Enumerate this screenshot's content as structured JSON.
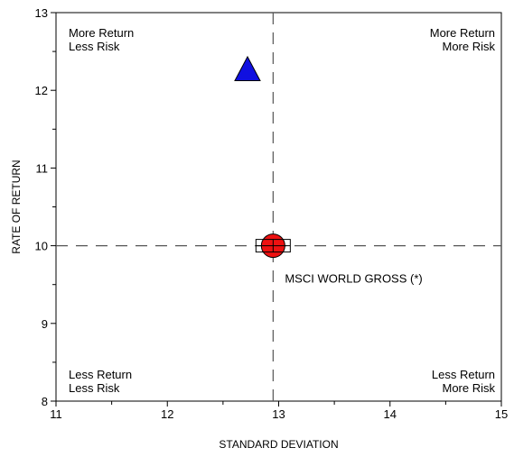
{
  "chart_data": {
    "type": "scatter",
    "xlabel": "STANDARD DEVIATION",
    "ylabel": "RATE OF RETURN",
    "xlim": [
      11,
      15
    ],
    "ylim": [
      8,
      13
    ],
    "x_ticks": [
      11,
      12,
      13,
      14,
      15
    ],
    "y_ticks": [
      8,
      9,
      10,
      11,
      12,
      13
    ],
    "grid": false,
    "reference_lines": {
      "x": 12.95,
      "y": 10.0,
      "style": "dashed",
      "color": "#555555"
    },
    "quadrant_labels": {
      "top_left": [
        "More Return",
        "Less Risk"
      ],
      "top_right": [
        "More Return",
        "More Risk"
      ],
      "bottom_left": [
        "Less Return",
        "Less Risk"
      ],
      "bottom_right": [
        "Less Return",
        "More Risk"
      ]
    },
    "points": [
      {
        "x": 12.72,
        "y": 12.27,
        "marker": "triangle",
        "color": "#1010e0",
        "label": ""
      },
      {
        "x": 12.95,
        "y": 10.0,
        "marker": "circle",
        "color": "#ee1111",
        "label": "MSCI WORLD GROSS (*)"
      },
      {
        "x": 12.95,
        "y": 10.0,
        "marker": "square-crosshair",
        "color": "#ffffff",
        "label": ""
      }
    ]
  }
}
